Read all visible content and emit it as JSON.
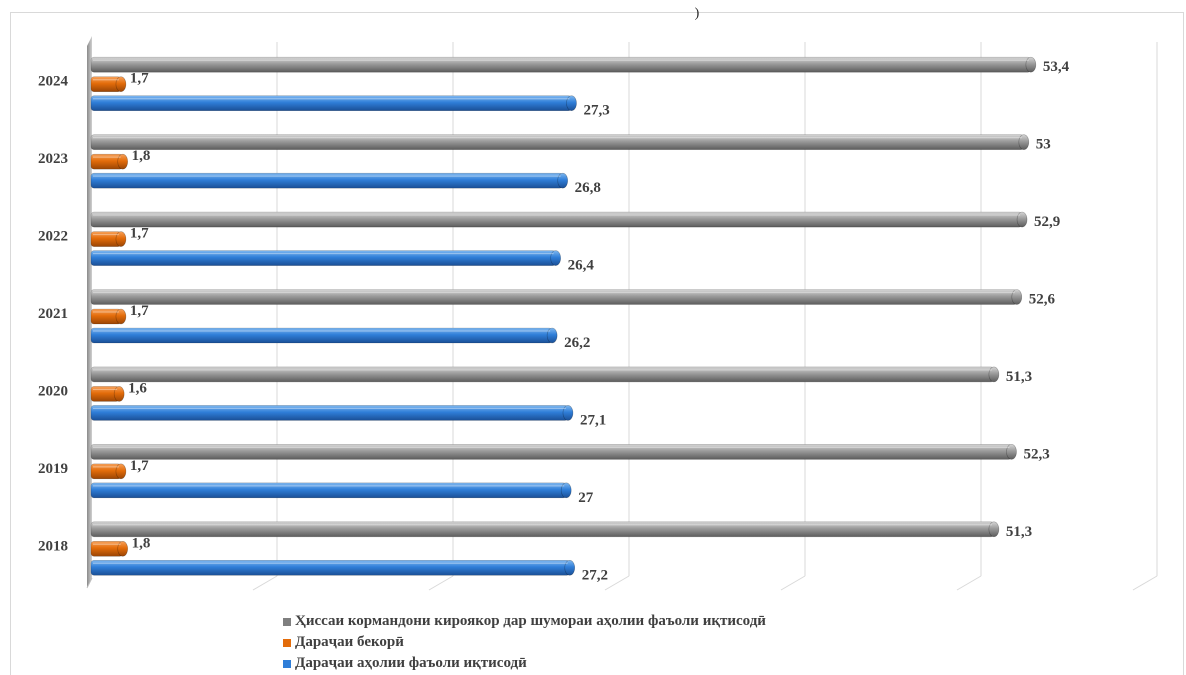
{
  "chart_data": {
    "type": "bar",
    "orientation": "horizontal",
    "categories": [
      "2018",
      "2019",
      "2020",
      "2021",
      "2022",
      "2023",
      "2024"
    ],
    "series": [
      {
        "name": "Ҳиссаи кормандони кироякор дар шумораи аҳолии фаъоли иқтисодӣ",
        "color": "#8c8c8c",
        "values": [
          51.3,
          52.3,
          51.3,
          52.6,
          52.9,
          53,
          53.4
        ],
        "labels": [
          "51,3",
          "52,3",
          "51,3",
          "52,6",
          "52,9",
          "53",
          "53,4"
        ]
      },
      {
        "name": "Дараҷаи бекорӣ",
        "color": "#e36c0a",
        "values": [
          1.8,
          1.7,
          1.6,
          1.7,
          1.7,
          1.8,
          1.7
        ],
        "labels": [
          "1,8",
          "1,7",
          "1,6",
          "1,7",
          "1,7",
          "1,8",
          "1,7"
        ]
      },
      {
        "name": "Дараҷаи аҳолии фаъоли иқтисодӣ",
        "color": "#2f7ed8",
        "values": [
          27.2,
          27,
          27.1,
          26.2,
          26.4,
          26.8,
          27.3
        ],
        "labels": [
          "27,2",
          "27",
          "27,1",
          "26,2",
          "26,4",
          "26,8",
          "27,3"
        ]
      }
    ],
    "xlim": [
      0,
      60
    ],
    "grid": true,
    "legend_position": "bottom",
    "chart_style": "3d-cylinder"
  },
  "top_mark": ")"
}
